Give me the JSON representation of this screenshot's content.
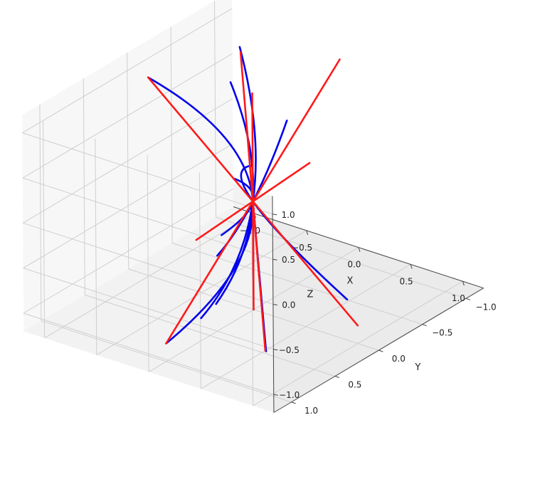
{
  "chart_data": {
    "type": "line",
    "projection": "3d",
    "title": "",
    "xlabel": "X",
    "ylabel": "Y",
    "zlabel": "Z",
    "xlim": [
      -1.2,
      1.2
    ],
    "ylim": [
      -1.2,
      1.2
    ],
    "zlim": [
      -1.2,
      1.2
    ],
    "xticks": [
      "−1.0",
      "−0.5",
      "0.0",
      "0.5",
      "1.0"
    ],
    "yticks": [
      "−1.0",
      "−0.5",
      "0.0",
      "0.5",
      "1.0"
    ],
    "zticks": [
      "−1.0",
      "−0.5",
      "0.0",
      "0.5",
      "1.0"
    ],
    "grid": true,
    "colors": {
      "blue_series": "#0000ee",
      "red_series": "#ff1a1a"
    },
    "series": [
      {
        "color": "blue",
        "x": [
          -1.0,
          0.0,
          0.0
        ],
        "y": [
          0.0,
          0.0,
          1.0
        ],
        "z": [
          1.0,
          0.0,
          -1.0
        ]
      },
      {
        "color": "blue",
        "x": [
          -0.75,
          0.0,
          0.0
        ],
        "y": [
          -0.75,
          0.0,
          0.6
        ],
        "z": [
          1.0,
          0.0,
          -0.95
        ]
      },
      {
        "color": "blue",
        "x": [
          -0.25,
          0.0,
          -0.15
        ],
        "y": [
          -0.05,
          0.0,
          0.25
        ],
        "z": [
          1.2,
          0.0,
          -1.05
        ]
      },
      {
        "color": "blue",
        "x": [
          0.5,
          0.0,
          -0.6
        ],
        "y": [
          0.2,
          0.0,
          -0.3
        ],
        "z": [
          1.2,
          0.0,
          -1.0
        ]
      },
      {
        "color": "blue",
        "x": [
          0.5,
          0.0,
          -0.6
        ],
        "y": [
          0.8,
          0.0,
          -0.35
        ],
        "z": [
          0.9,
          0.0,
          -0.8
        ]
      },
      {
        "color": "blue",
        "x": [
          0.0,
          0.0,
          0.0
        ],
        "y": [
          0.0,
          0.0,
          0.0
        ],
        "z": [
          0.35,
          0.0,
          -0.85
        ]
      },
      {
        "color": "blue",
        "x": [
          0.0,
          0.0,
          0.9
        ],
        "y": [
          0.0,
          0.0,
          0.0
        ],
        "z": [
          0.4,
          0.0,
          -0.75
        ]
      },
      {
        "color": "blue",
        "x": [
          0.0,
          0.0,
          0.75
        ],
        "y": [
          0.0,
          0.0,
          0.75
        ],
        "z": [
          0.0,
          0.0,
          -0.95
        ]
      },
      {
        "color": "red",
        "x": [
          -0.7,
          0.7
        ],
        "y": [
          -0.7,
          0.7
        ],
        "z": [
          0.99,
          -0.99
        ]
      },
      {
        "color": "red",
        "x": [
          -1.0,
          1.0
        ],
        "y": [
          0.0,
          0.0
        ],
        "z": [
          1.0,
          -1.0
        ]
      },
      {
        "color": "red",
        "x": [
          0.0,
          0.0
        ],
        "y": [
          0.0,
          0.0
        ],
        "z": [
          1.2,
          -1.2
        ]
      },
      {
        "color": "red",
        "x": [
          0.0,
          0.0
        ],
        "y": [
          -1.0,
          1.0
        ],
        "z": [
          1.0,
          -1.0
        ]
      },
      {
        "color": "red",
        "x": [
          -0.35,
          0.35
        ],
        "y": [
          -0.35,
          0.35
        ],
        "z": [
          0.5,
          -0.5
        ]
      },
      {
        "color": "red",
        "x": [
          0.8,
          -0.8
        ],
        "y": [
          0.3,
          -0.3
        ],
        "z": [
          0.9,
          -0.9
        ]
      },
      {
        "color": "red",
        "x": [
          0.0,
          0.0
        ],
        "y": [
          0.0,
          0.0
        ],
        "z": [
          0.0,
          -0.8
        ]
      }
    ]
  }
}
